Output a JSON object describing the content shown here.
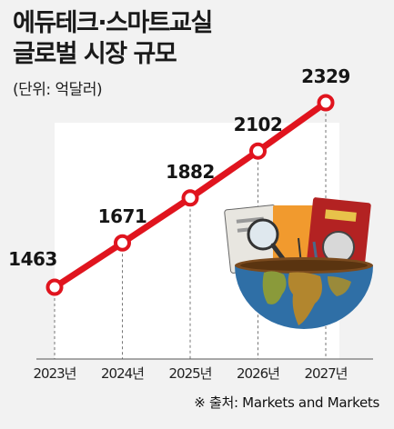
{
  "header": {
    "title_line1": "에듀테크·스마트교실",
    "title_line2": "글로벌 시장 규모",
    "unit": "(단위: 억달러)"
  },
  "footer": {
    "source": "※ 출처: Markets and Markets"
  },
  "colors": {
    "line": "#e0141e",
    "background": "#f2f2f2",
    "plot_area": "#ffffff",
    "dashed_gridline": "#777777"
  },
  "chart_data": {
    "type": "line",
    "title": "에듀테크·스마트교실 글로벌 시장 규모",
    "ylabel": "(단위: 억달러)",
    "categories": [
      "2023년",
      "2024년",
      "2025년",
      "2026년",
      "2027년"
    ],
    "series": [
      {
        "values": [
          1463,
          1671,
          1882,
          2102,
          2329
        ]
      }
    ],
    "data_labels": [
      "1463",
      "1671",
      "1882",
      "2102",
      "2329"
    ],
    "grid": "vertical-dashed",
    "legend": "none"
  }
}
